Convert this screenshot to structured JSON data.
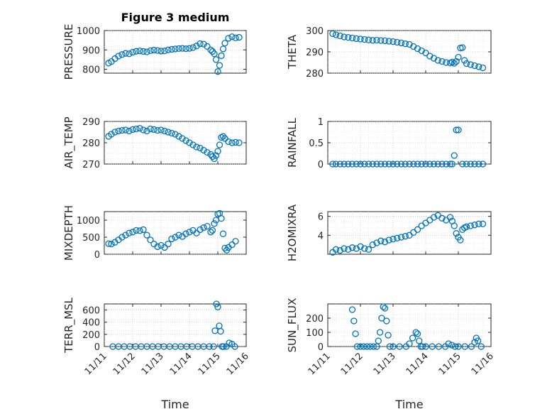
{
  "figure": {
    "title": "Figure 3 medium"
  },
  "colors": {
    "marker": "#0072BD",
    "axis": "#262626",
    "grid": "#bdbdbd"
  },
  "chart_data": [
    {
      "id": "pressure",
      "type": "scatter",
      "ylabel": "PRESSURE",
      "xlabel": "",
      "xlim": [
        0,
        4
      ],
      "ylim": [
        780,
        1000
      ],
      "yticks": [
        800,
        900,
        1000
      ],
      "xticks": [],
      "xtick_labels": [],
      "grid": true,
      "x": [
        0.12,
        0.2,
        0.3,
        0.4,
        0.5,
        0.6,
        0.7,
        0.8,
        0.9,
        1.0,
        1.1,
        1.2,
        1.3,
        1.4,
        1.5,
        1.6,
        1.7,
        1.8,
        1.9,
        2.0,
        2.1,
        2.2,
        2.3,
        2.4,
        2.5,
        2.6,
        2.7,
        2.8,
        2.9,
        3.0,
        3.05,
        3.1,
        3.15,
        3.2,
        3.25,
        3.3,
        3.35,
        3.4,
        3.5,
        3.6,
        3.7,
        3.8
      ],
      "y": [
        832,
        840,
        855,
        868,
        876,
        882,
        880,
        888,
        893,
        895,
        892,
        890,
        896,
        899,
        897,
        894,
        895,
        900,
        903,
        905,
        907,
        908,
        906,
        908,
        912,
        920,
        932,
        930,
        918,
        900,
        892,
        880,
        850,
        788,
        820,
        870,
        905,
        935,
        960,
        968,
        962,
        965
      ]
    },
    {
      "id": "theta",
      "type": "scatter",
      "ylabel": "THETA",
      "xlabel": "",
      "xlim": [
        0,
        4
      ],
      "ylim": [
        280,
        300
      ],
      "yticks": [
        280,
        290,
        300
      ],
      "xticks": [],
      "xtick_labels": [],
      "grid": true,
      "x": [
        0.12,
        0.2,
        0.3,
        0.4,
        0.5,
        0.6,
        0.7,
        0.8,
        0.9,
        1.0,
        1.1,
        1.2,
        1.3,
        1.4,
        1.5,
        1.6,
        1.7,
        1.8,
        1.9,
        2.0,
        2.1,
        2.2,
        2.3,
        2.4,
        2.5,
        2.6,
        2.7,
        2.8,
        2.9,
        3.0,
        3.05,
        3.1,
        3.15,
        3.2,
        3.25,
        3.3,
        3.35,
        3.4,
        3.5,
        3.6,
        3.7,
        3.8
      ],
      "y": [
        298.5,
        298,
        297.5,
        297,
        296.8,
        296.5,
        296.2,
        296,
        295.8,
        295.6,
        295.4,
        295.5,
        295.3,
        295.2,
        295,
        294.8,
        294.5,
        294.2,
        293.8,
        293.5,
        292.5,
        291.5,
        290.5,
        289.5,
        288,
        287,
        286,
        285.5,
        285,
        284.8,
        285.2,
        284.6,
        285.5,
        287.5,
        291.8,
        292,
        286,
        284.5,
        284,
        283.5,
        283,
        282.5
      ]
    },
    {
      "id": "air_temp",
      "type": "scatter",
      "ylabel": "AIR_TEMP",
      "xlabel": "",
      "xlim": [
        0,
        4
      ],
      "ylim": [
        270,
        290
      ],
      "yticks": [
        270,
        280,
        290
      ],
      "xticks": [],
      "xtick_labels": [],
      "grid": true,
      "x": [
        0.12,
        0.2,
        0.3,
        0.4,
        0.5,
        0.6,
        0.7,
        0.8,
        0.9,
        1.0,
        1.1,
        1.2,
        1.3,
        1.4,
        1.5,
        1.6,
        1.7,
        1.8,
        1.9,
        2.0,
        2.1,
        2.2,
        2.3,
        2.4,
        2.5,
        2.6,
        2.7,
        2.8,
        2.9,
        3.0,
        3.05,
        3.1,
        3.15,
        3.2,
        3.25,
        3.3,
        3.35,
        3.4,
        3.5,
        3.6,
        3.7,
        3.8
      ],
      "y": [
        283,
        284,
        285,
        285.5,
        285.8,
        286,
        285.5,
        286.2,
        286.5,
        286.8,
        286,
        285.5,
        286.5,
        286.2,
        285.8,
        286,
        285.5,
        285,
        284.5,
        284,
        283,
        282,
        281,
        280,
        279,
        278,
        277.5,
        276.5,
        275.5,
        274.5,
        273.5,
        272.5,
        274,
        276,
        279,
        282.5,
        283,
        282,
        280.5,
        280,
        280.2,
        280
      ]
    },
    {
      "id": "rainfall",
      "type": "scatter",
      "ylabel": "RAINFALL",
      "xlabel": "",
      "xlim": [
        0,
        4
      ],
      "ylim": [
        0,
        1
      ],
      "yticks": [
        0,
        0.5,
        1
      ],
      "xticks": [],
      "xtick_labels": [],
      "grid": true,
      "x": [
        0.12,
        0.2,
        0.3,
        0.4,
        0.5,
        0.6,
        0.7,
        0.8,
        0.9,
        1.0,
        1.1,
        1.2,
        1.3,
        1.4,
        1.5,
        1.6,
        1.7,
        1.8,
        1.9,
        2.0,
        2.1,
        2.2,
        2.3,
        2.4,
        2.5,
        2.6,
        2.7,
        2.8,
        2.9,
        3.0,
        3.05,
        3.1,
        3.15,
        3.2,
        3.3,
        3.4,
        3.5,
        3.6,
        3.7,
        3.8
      ],
      "y": [
        0,
        0,
        0,
        0,
        0,
        0,
        0,
        0,
        0,
        0,
        0,
        0,
        0,
        0,
        0,
        0,
        0,
        0,
        0,
        0,
        0,
        0,
        0,
        0,
        0,
        0,
        0,
        0,
        0,
        0,
        0,
        0.2,
        0.8,
        0.8,
        0,
        0,
        0,
        0,
        0,
        0
      ]
    },
    {
      "id": "mixdepth",
      "type": "scatter",
      "ylabel": "MIXDEPTH",
      "xlabel": "",
      "xlim": [
        0,
        4
      ],
      "ylim": [
        0,
        1250
      ],
      "yticks": [
        0,
        500,
        1000
      ],
      "xticks": [],
      "xtick_labels": [],
      "grid": true,
      "x": [
        0.12,
        0.2,
        0.3,
        0.4,
        0.5,
        0.6,
        0.7,
        0.8,
        0.9,
        1.0,
        1.1,
        1.2,
        1.3,
        1.4,
        1.5,
        1.6,
        1.7,
        1.8,
        1.9,
        2.0,
        2.1,
        2.2,
        2.3,
        2.4,
        2.5,
        2.6,
        2.7,
        2.8,
        2.9,
        3.0,
        3.05,
        3.1,
        3.15,
        3.2,
        3.25,
        3.3,
        3.35,
        3.4,
        3.45,
        3.5,
        3.6,
        3.7
      ],
      "y": [
        310,
        300,
        350,
        420,
        500,
        560,
        620,
        650,
        700,
        690,
        720,
        560,
        420,
        300,
        220,
        260,
        200,
        300,
        450,
        500,
        560,
        520,
        600,
        650,
        700,
        620,
        720,
        780,
        820,
        650,
        700,
        900,
        1000,
        1180,
        1200,
        1050,
        600,
        180,
        120,
        200,
        280,
        380
      ]
    },
    {
      "id": "h2omixra",
      "type": "scatter",
      "ylabel": "H2OMIXRA",
      "xlabel": "",
      "xlim": [
        0,
        4
      ],
      "ylim": [
        2,
        6.5
      ],
      "yticks": [
        4,
        6
      ],
      "xticks": [],
      "xtick_labels": [],
      "grid": true,
      "x": [
        0.12,
        0.2,
        0.3,
        0.4,
        0.5,
        0.6,
        0.7,
        0.8,
        0.9,
        1.0,
        1.1,
        1.2,
        1.3,
        1.4,
        1.5,
        1.6,
        1.7,
        1.8,
        1.9,
        2.0,
        2.1,
        2.2,
        2.3,
        2.4,
        2.5,
        2.6,
        2.7,
        2.8,
        2.9,
        3.0,
        3.05,
        3.1,
        3.15,
        3.2,
        3.25,
        3.3,
        3.35,
        3.4,
        3.5,
        3.6,
        3.7,
        3.8
      ],
      "y": [
        2.2,
        2.5,
        2.4,
        2.6,
        2.5,
        2.7,
        2.6,
        2.8,
        2.6,
        2.5,
        3,
        3.2,
        3.4,
        3.3,
        3.5,
        3.6,
        3.7,
        3.8,
        3.9,
        4,
        4.3,
        4.6,
        5,
        5.3,
        5.6,
        5.9,
        6.1,
        5.8,
        5.6,
        5.9,
        5.5,
        5,
        4.2,
        3.8,
        3.5,
        4.6,
        4.8,
        4.9,
        5,
        5.1,
        5.2,
        5.2
      ]
    },
    {
      "id": "terr_msl",
      "type": "scatter",
      "ylabel": "TERR_MSL",
      "xlabel": "Time",
      "xlim": [
        0,
        5
      ],
      "ylim": [
        0,
        700
      ],
      "yticks": [
        0,
        200,
        400,
        600
      ],
      "xticks": [
        0,
        1,
        2,
        3,
        4,
        5
      ],
      "xtick_labels": [
        "11/11",
        "11/12",
        "11/13",
        "11/14",
        "11/15",
        "11/16"
      ],
      "grid": true,
      "x": [
        0.3,
        0.5,
        0.7,
        0.9,
        1.1,
        1.3,
        1.5,
        1.7,
        1.9,
        2.1,
        2.3,
        2.5,
        2.7,
        2.9,
        3.1,
        3.3,
        3.5,
        3.7,
        3.85,
        3.9,
        3.95,
        4.0,
        4.05,
        4.1,
        4.15,
        4.2,
        4.3,
        4.4,
        4.5,
        4.6
      ],
      "y": [
        0,
        0,
        0,
        0,
        0,
        0,
        0,
        0,
        0,
        0,
        0,
        0,
        0,
        0,
        0,
        0,
        0,
        0,
        0,
        260,
        700,
        650,
        340,
        250,
        0,
        0,
        0,
        60,
        40,
        0
      ]
    },
    {
      "id": "sun_flux",
      "type": "scatter",
      "ylabel": "SUN_FLUX",
      "xlabel": "Time",
      "xlim": [
        0,
        5
      ],
      "ylim": [
        0,
        300
      ],
      "yticks": [
        0,
        100,
        200
      ],
      "xticks": [
        0,
        1,
        2,
        3,
        4,
        5
      ],
      "xtick_labels": [
        "11/11",
        "11/12",
        "11/13",
        "11/14",
        "11/15",
        "11/16"
      ],
      "grid": true,
      "x": [
        0.75,
        0.8,
        0.85,
        0.9,
        1.0,
        1.1,
        1.2,
        1.3,
        1.4,
        1.5,
        1.55,
        1.6,
        1.65,
        1.7,
        1.75,
        1.8,
        1.85,
        1.9,
        2.0,
        2.2,
        2.4,
        2.5,
        2.6,
        2.7,
        2.75,
        2.8,
        2.85,
        2.9,
        3.0,
        3.2,
        3.4,
        3.6,
        3.7,
        3.8,
        3.9,
        4.0,
        4.2,
        4.4,
        4.5,
        4.55,
        4.6,
        4.7
      ],
      "y": [
        260,
        180,
        90,
        0,
        0,
        0,
        0,
        0,
        0,
        0,
        40,
        100,
        200,
        280,
        270,
        180,
        80,
        0,
        0,
        0,
        0,
        20,
        60,
        100,
        90,
        40,
        0,
        0,
        0,
        0,
        0,
        0,
        20,
        10,
        0,
        0,
        0,
        0,
        30,
        60,
        40,
        0
      ]
    }
  ]
}
